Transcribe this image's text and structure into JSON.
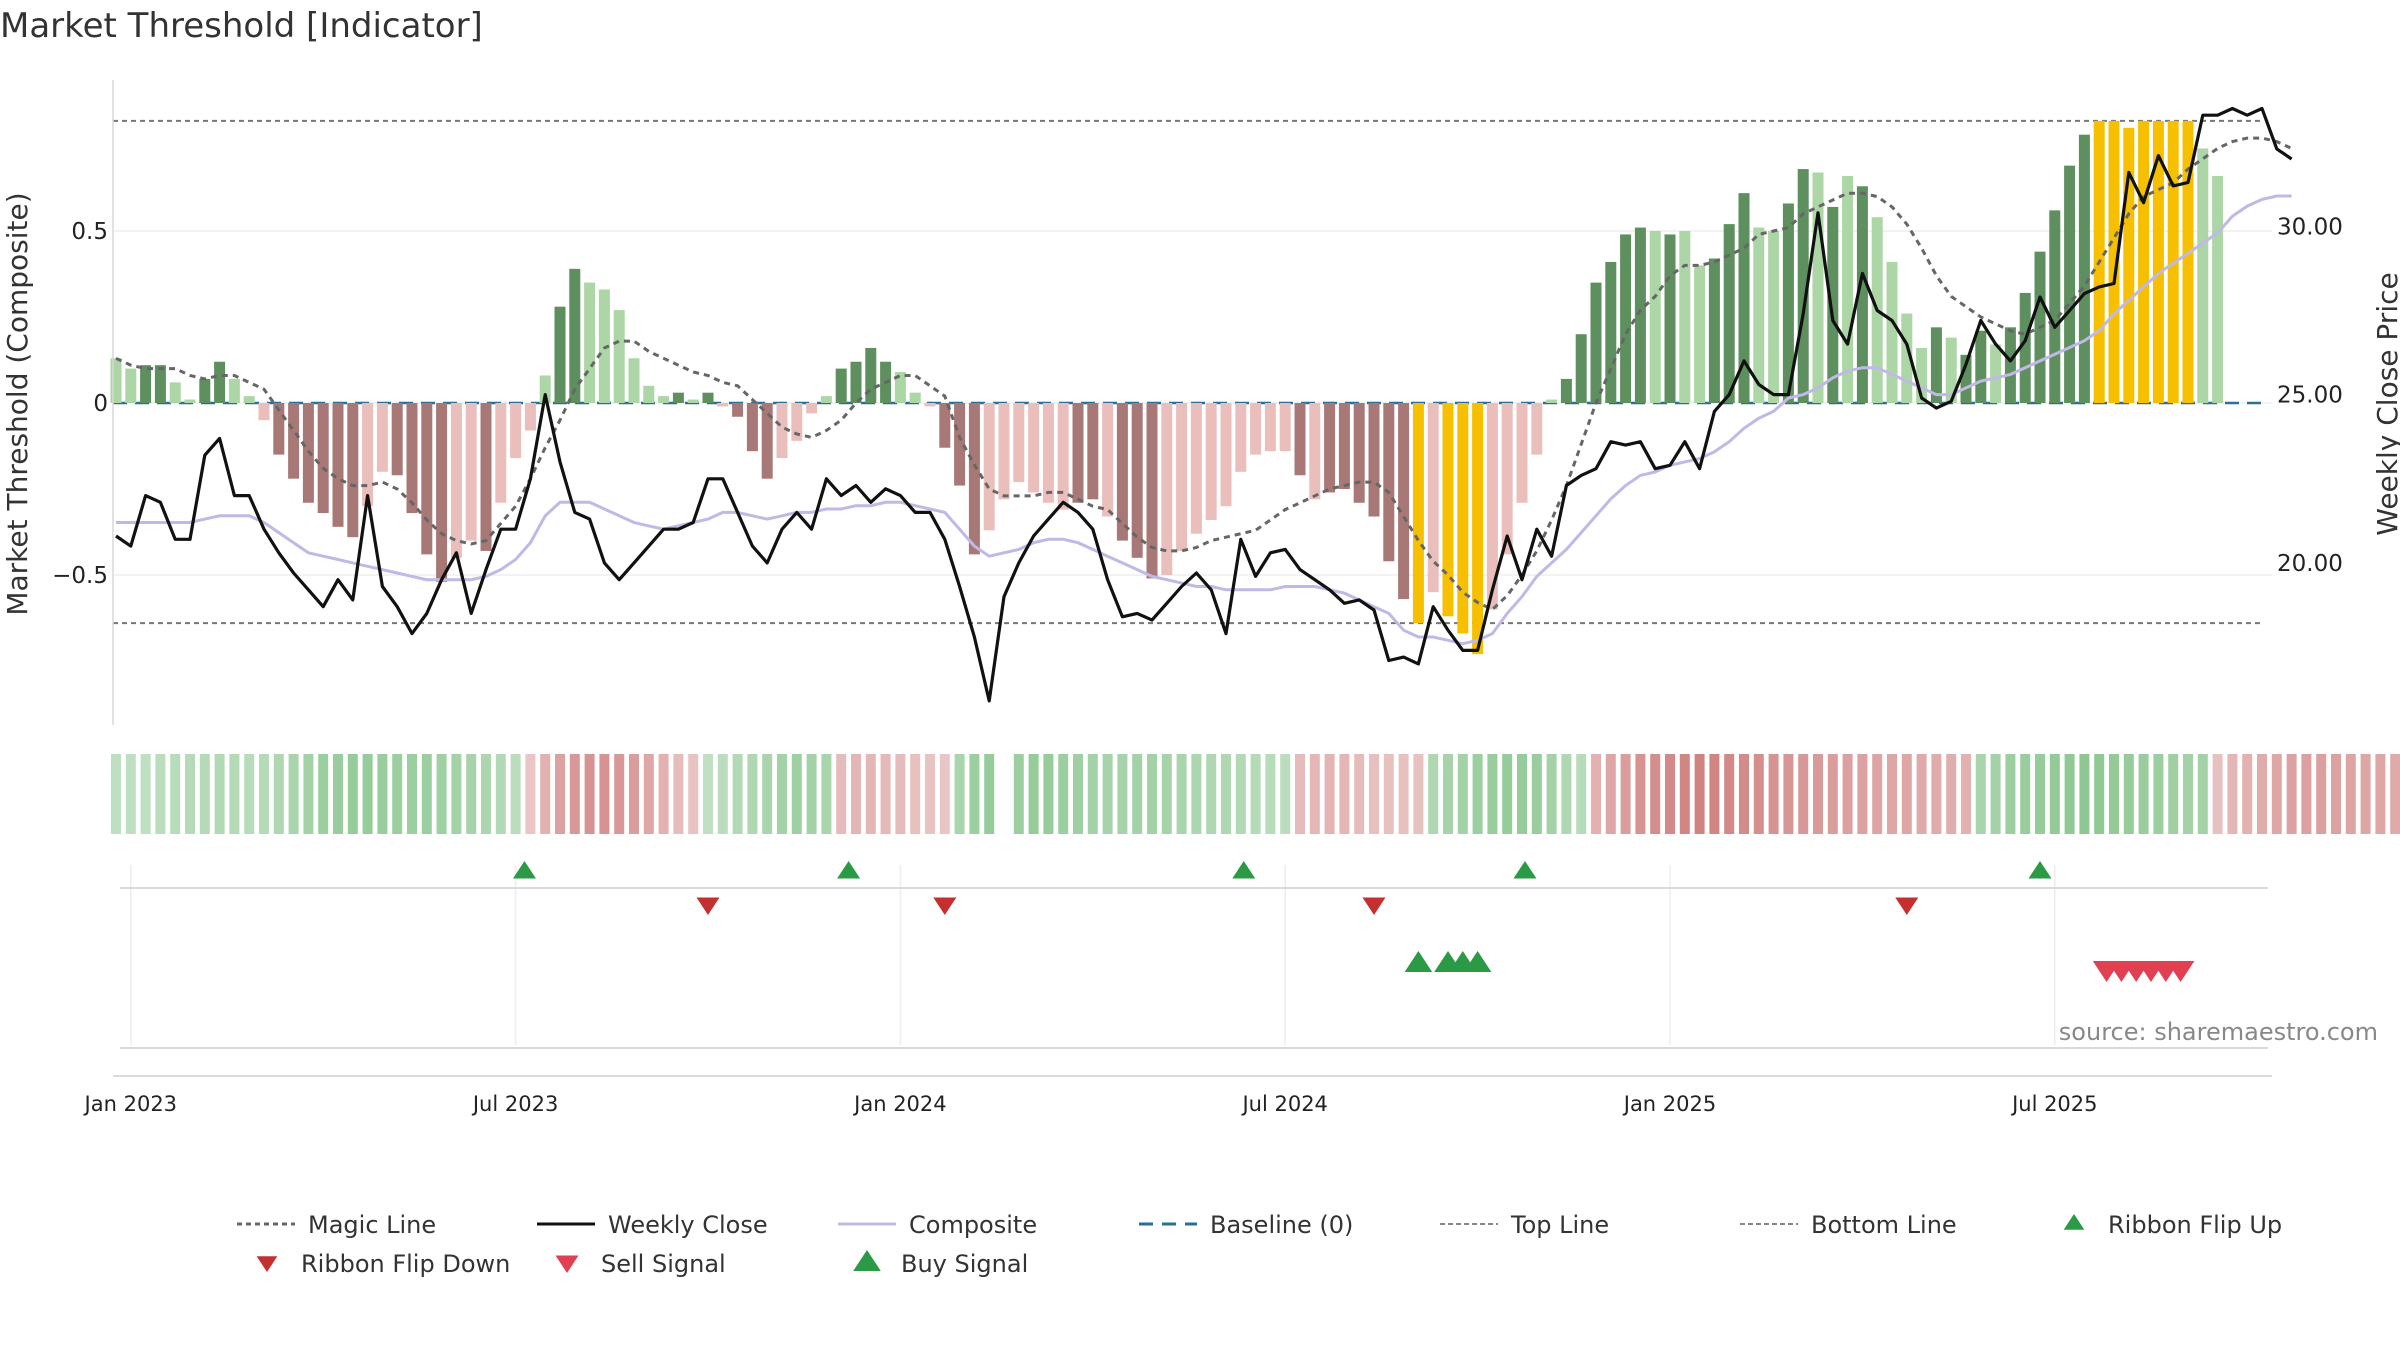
{
  "chart_data": {
    "type": "bar",
    "title": "Market Threshold [Indicator]",
    "ylabel_left": "Market Threshold (Composite)",
    "ylabel_right": "Weekly Close Price",
    "source": "source: sharemaestro.com",
    "ylim_left": [
      -0.93,
      0.93
    ],
    "ylim_right": [
      15.41,
      34.41
    ],
    "yticks_left": [
      {
        "v": 0.5,
        "label": "0.5"
      },
      {
        "v": 0,
        "label": "0"
      },
      {
        "v": -0.5,
        "label": "−0.5"
      }
    ],
    "yticks_right": [
      {
        "v": 30,
        "label": "30.00"
      },
      {
        "v": 25,
        "label": "25.00"
      },
      {
        "v": 20,
        "label": "20.00"
      }
    ],
    "xticks": [
      {
        "week": 1,
        "label": "Jan 2023"
      },
      {
        "week": 27,
        "label": "Jul 2023"
      },
      {
        "week": 53,
        "label": "Jan 2024"
      },
      {
        "week": 79,
        "label": "Jul 2024"
      },
      {
        "week": 105,
        "label": "Jan 2025"
      },
      {
        "week": 131,
        "label": "Jul 2025"
      }
    ],
    "top_line": 0.82,
    "bottom_line": -0.64,
    "colors": {
      "strong_up": "#5e8f5e",
      "weak_up": "#acd6a6",
      "strong_down": "#a77876",
      "weak_down": "#eabfbb",
      "extreme": "#f6c000",
      "weekly_close": "#111111",
      "composite": "#c0b8e6",
      "magic": "#666666",
      "baseline": "#2a6f97",
      "ribbon_flip_up": "#2a9a45",
      "ribbon_flip_down": "#c43030",
      "sell_signal": "#e04050",
      "buy_signal": "#2a9a45"
    },
    "bars": [
      {
        "v": 0.13,
        "c": "weak_up"
      },
      {
        "v": 0.1,
        "c": "weak_up"
      },
      {
        "v": 0.11,
        "c": "strong_up"
      },
      {
        "v": 0.11,
        "c": "strong_up"
      },
      {
        "v": 0.06,
        "c": "weak_up"
      },
      {
        "v": 0.01,
        "c": "weak_up"
      },
      {
        "v": 0.07,
        "c": "strong_up"
      },
      {
        "v": 0.12,
        "c": "strong_up"
      },
      {
        "v": 0.07,
        "c": "weak_up"
      },
      {
        "v": 0.02,
        "c": "weak_up"
      },
      {
        "v": -0.05,
        "c": "weak_down"
      },
      {
        "v": -0.15,
        "c": "strong_down"
      },
      {
        "v": -0.22,
        "c": "strong_down"
      },
      {
        "v": -0.29,
        "c": "strong_down"
      },
      {
        "v": -0.32,
        "c": "strong_down"
      },
      {
        "v": -0.36,
        "c": "strong_down"
      },
      {
        "v": -0.39,
        "c": "strong_down"
      },
      {
        "v": -0.3,
        "c": "weak_down"
      },
      {
        "v": -0.2,
        "c": "weak_down"
      },
      {
        "v": -0.21,
        "c": "strong_down"
      },
      {
        "v": -0.32,
        "c": "strong_down"
      },
      {
        "v": -0.44,
        "c": "strong_down"
      },
      {
        "v": -0.52,
        "c": "strong_down"
      },
      {
        "v": -0.45,
        "c": "weak_down"
      },
      {
        "v": -0.4,
        "c": "weak_down"
      },
      {
        "v": -0.43,
        "c": "strong_down"
      },
      {
        "v": -0.29,
        "c": "weak_down"
      },
      {
        "v": -0.16,
        "c": "weak_down"
      },
      {
        "v": -0.08,
        "c": "weak_down"
      },
      {
        "v": 0.08,
        "c": "weak_up"
      },
      {
        "v": 0.28,
        "c": "strong_up"
      },
      {
        "v": 0.39,
        "c": "strong_up"
      },
      {
        "v": 0.35,
        "c": "weak_up"
      },
      {
        "v": 0.33,
        "c": "weak_up"
      },
      {
        "v": 0.27,
        "c": "weak_up"
      },
      {
        "v": 0.13,
        "c": "weak_up"
      },
      {
        "v": 0.05,
        "c": "weak_up"
      },
      {
        "v": 0.02,
        "c": "weak_up"
      },
      {
        "v": 0.03,
        "c": "strong_up"
      },
      {
        "v": 0.01,
        "c": "weak_up"
      },
      {
        "v": 0.03,
        "c": "strong_up"
      },
      {
        "v": -0.01,
        "c": "weak_down"
      },
      {
        "v": -0.04,
        "c": "strong_down"
      },
      {
        "v": -0.14,
        "c": "strong_down"
      },
      {
        "v": -0.22,
        "c": "strong_down"
      },
      {
        "v": -0.16,
        "c": "weak_down"
      },
      {
        "v": -0.11,
        "c": "weak_down"
      },
      {
        "v": -0.03,
        "c": "weak_down"
      },
      {
        "v": 0.02,
        "c": "weak_up"
      },
      {
        "v": 0.1,
        "c": "strong_up"
      },
      {
        "v": 0.12,
        "c": "strong_up"
      },
      {
        "v": 0.16,
        "c": "strong_up"
      },
      {
        "v": 0.12,
        "c": "strong_up"
      },
      {
        "v": 0.09,
        "c": "weak_up"
      },
      {
        "v": 0.03,
        "c": "weak_up"
      },
      {
        "v": -0.01,
        "c": "weak_down"
      },
      {
        "v": -0.13,
        "c": "strong_down"
      },
      {
        "v": -0.24,
        "c": "strong_down"
      },
      {
        "v": -0.44,
        "c": "strong_down"
      },
      {
        "v": -0.37,
        "c": "weak_down"
      },
      {
        "v": -0.28,
        "c": "weak_down"
      },
      {
        "v": -0.23,
        "c": "weak_down"
      },
      {
        "v": -0.26,
        "c": "weak_down"
      },
      {
        "v": -0.29,
        "c": "weak_down"
      },
      {
        "v": -0.31,
        "c": "weak_down"
      },
      {
        "v": -0.29,
        "c": "strong_down"
      },
      {
        "v": -0.28,
        "c": "strong_down"
      },
      {
        "v": -0.33,
        "c": "weak_down"
      },
      {
        "v": -0.4,
        "c": "strong_down"
      },
      {
        "v": -0.45,
        "c": "strong_down"
      },
      {
        "v": -0.51,
        "c": "strong_down"
      },
      {
        "v": -0.5,
        "c": "weak_down"
      },
      {
        "v": -0.43,
        "c": "weak_down"
      },
      {
        "v": -0.38,
        "c": "weak_down"
      },
      {
        "v": -0.34,
        "c": "weak_down"
      },
      {
        "v": -0.3,
        "c": "weak_down"
      },
      {
        "v": -0.2,
        "c": "weak_down"
      },
      {
        "v": -0.15,
        "c": "weak_down"
      },
      {
        "v": -0.14,
        "c": "weak_down"
      },
      {
        "v": -0.14,
        "c": "weak_down"
      },
      {
        "v": -0.21,
        "c": "strong_down"
      },
      {
        "v": -0.28,
        "c": "weak_down"
      },
      {
        "v": -0.26,
        "c": "strong_down"
      },
      {
        "v": -0.25,
        "c": "strong_down"
      },
      {
        "v": -0.29,
        "c": "strong_down"
      },
      {
        "v": -0.33,
        "c": "strong_down"
      },
      {
        "v": -0.46,
        "c": "strong_down"
      },
      {
        "v": -0.57,
        "c": "strong_down"
      },
      {
        "v": -0.64,
        "c": "extreme"
      },
      {
        "v": -0.55,
        "c": "weak_down"
      },
      {
        "v": -0.62,
        "c": "extreme"
      },
      {
        "v": -0.67,
        "c": "extreme"
      },
      {
        "v": -0.73,
        "c": "extreme"
      },
      {
        "v": -0.6,
        "c": "weak_down"
      },
      {
        "v": -0.44,
        "c": "weak_down"
      },
      {
        "v": -0.29,
        "c": "weak_down"
      },
      {
        "v": -0.15,
        "c": "weak_down"
      },
      {
        "v": 0.01,
        "c": "weak_up"
      },
      {
        "v": 0.07,
        "c": "strong_up"
      },
      {
        "v": 0.2,
        "c": "strong_up"
      },
      {
        "v": 0.35,
        "c": "strong_up"
      },
      {
        "v": 0.41,
        "c": "strong_up"
      },
      {
        "v": 0.49,
        "c": "strong_up"
      },
      {
        "v": 0.51,
        "c": "strong_up"
      },
      {
        "v": 0.5,
        "c": "weak_up"
      },
      {
        "v": 0.49,
        "c": "strong_up"
      },
      {
        "v": 0.5,
        "c": "weak_up"
      },
      {
        "v": 0.4,
        "c": "weak_up"
      },
      {
        "v": 0.42,
        "c": "strong_up"
      },
      {
        "v": 0.52,
        "c": "strong_up"
      },
      {
        "v": 0.61,
        "c": "strong_up"
      },
      {
        "v": 0.51,
        "c": "weak_up"
      },
      {
        "v": 0.5,
        "c": "weak_up"
      },
      {
        "v": 0.58,
        "c": "strong_up"
      },
      {
        "v": 0.68,
        "c": "strong_up"
      },
      {
        "v": 0.67,
        "c": "weak_up"
      },
      {
        "v": 0.57,
        "c": "strong_up"
      },
      {
        "v": 0.66,
        "c": "weak_up"
      },
      {
        "v": 0.63,
        "c": "strong_up"
      },
      {
        "v": 0.54,
        "c": "weak_up"
      },
      {
        "v": 0.41,
        "c": "weak_up"
      },
      {
        "v": 0.26,
        "c": "weak_up"
      },
      {
        "v": 0.16,
        "c": "weak_up"
      },
      {
        "v": 0.22,
        "c": "strong_up"
      },
      {
        "v": 0.19,
        "c": "weak_up"
      },
      {
        "v": 0.14,
        "c": "strong_up"
      },
      {
        "v": 0.21,
        "c": "strong_up"
      },
      {
        "v": 0.17,
        "c": "weak_up"
      },
      {
        "v": 0.22,
        "c": "strong_up"
      },
      {
        "v": 0.32,
        "c": "strong_up"
      },
      {
        "v": 0.44,
        "c": "strong_up"
      },
      {
        "v": 0.56,
        "c": "strong_up"
      },
      {
        "v": 0.69,
        "c": "strong_up"
      },
      {
        "v": 0.78,
        "c": "strong_up"
      },
      {
        "v": 0.82,
        "c": "extreme"
      },
      {
        "v": 0.82,
        "c": "extreme"
      },
      {
        "v": 0.8,
        "c": "extreme"
      },
      {
        "v": 0.82,
        "c": "extreme"
      },
      {
        "v": 0.82,
        "c": "extreme"
      },
      {
        "v": 0.82,
        "c": "extreme"
      },
      {
        "v": 0.82,
        "c": "extreme"
      },
      {
        "v": 0.74,
        "c": "weak_up"
      },
      {
        "v": 0.66,
        "c": "weak_up"
      }
    ],
    "weekly_close": [
      20.8,
      20.5,
      22.0,
      21.8,
      20.7,
      20.7,
      23.2,
      23.7,
      22.0,
      22.0,
      21.0,
      20.3,
      19.7,
      19.2,
      18.7,
      19.5,
      18.9,
      22.0,
      19.3,
      18.7,
      17.9,
      18.5,
      19.5,
      20.3,
      18.5,
      19.8,
      21.0,
      21.0,
      22.5,
      25.0,
      23.0,
      21.5,
      21.3,
      20.0,
      19.5,
      20.0,
      20.5,
      21.0,
      21.0,
      21.2,
      22.5,
      22.5,
      21.5,
      20.5,
      20.0,
      21.0,
      21.5,
      21.0,
      22.5,
      22.0,
      22.3,
      21.8,
      22.2,
      22.0,
      21.5,
      21.5,
      20.7,
      19.3,
      17.8,
      15.9,
      19.0,
      20.0,
      20.8,
      21.3,
      21.8,
      21.5,
      21.0,
      19.5,
      18.4,
      18.5,
      18.3,
      18.8,
      19.3,
      19.7,
      19.2,
      17.9,
      20.7,
      19.6,
      20.3,
      20.4,
      19.8,
      19.5,
      19.2,
      18.8,
      18.9,
      18.6,
      17.1,
      17.2,
      17.0,
      18.7,
      18.0,
      17.4,
      17.4,
      19.2,
      20.8,
      19.5,
      21.0,
      20.2,
      22.3,
      22.6,
      22.8,
      23.6,
      23.5,
      23.6,
      22.8,
      22.9,
      23.6,
      22.8,
      24.5,
      25.0,
      26.0,
      25.3,
      25.0,
      25.0,
      27.4,
      30.4,
      27.2,
      26.5,
      28.6,
      27.5,
      27.2,
      26.5,
      24.9,
      24.6,
      24.8,
      25.9,
      27.2,
      26.5,
      26.0,
      26.6,
      27.9,
      27.0,
      27.5,
      28.0,
      28.2,
      28.3,
      31.6,
      30.7,
      32.1,
      31.2,
      31.3,
      33.3,
      33.3,
      33.5,
      33.3,
      33.5,
      32.3,
      32.0
    ],
    "composite_line": [
      21.2,
      21.2,
      21.2,
      21.2,
      21.2,
      21.2,
      21.3,
      21.4,
      21.4,
      21.4,
      21.2,
      20.9,
      20.6,
      20.3,
      20.2,
      20.1,
      20.0,
      19.9,
      19.8,
      19.7,
      19.6,
      19.5,
      19.5,
      19.5,
      19.5,
      19.6,
      19.8,
      20.1,
      20.6,
      21.4,
      21.8,
      21.8,
      21.8,
      21.6,
      21.4,
      21.2,
      21.1,
      21.0,
      21.1,
      21.2,
      21.3,
      21.5,
      21.5,
      21.4,
      21.3,
      21.4,
      21.5,
      21.5,
      21.6,
      21.6,
      21.7,
      21.7,
      21.8,
      21.8,
      21.7,
      21.6,
      21.5,
      21.0,
      20.5,
      20.2,
      20.3,
      20.4,
      20.6,
      20.7,
      20.7,
      20.6,
      20.4,
      20.2,
      20.0,
      19.8,
      19.6,
      19.5,
      19.4,
      19.3,
      19.3,
      19.2,
      19.2,
      19.2,
      19.2,
      19.3,
      19.3,
      19.3,
      19.2,
      19.1,
      18.9,
      18.7,
      18.5,
      18.0,
      17.8,
      17.8,
      17.7,
      17.6,
      17.7,
      17.9,
      18.5,
      19.0,
      19.6,
      20.0,
      20.4,
      20.9,
      21.4,
      21.9,
      22.3,
      22.6,
      22.7,
      22.9,
      23.0,
      23.1,
      23.3,
      23.6,
      24.0,
      24.3,
      24.5,
      24.9,
      25.0,
      25.2,
      25.5,
      25.7,
      25.8,
      25.8,
      25.6,
      25.4,
      25.2,
      25.0,
      25.0,
      25.2,
      25.4,
      25.5,
      25.6,
      25.8,
      26.0,
      26.2,
      26.4,
      26.6,
      26.9,
      27.4,
      27.8,
      28.2,
      28.6,
      28.9,
      29.2,
      29.5,
      29.8,
      30.3,
      30.6,
      30.8,
      30.9,
      30.9
    ],
    "magic_line": [
      0.13,
      0.11,
      0.1,
      0.1,
      0.1,
      0.08,
      0.07,
      0.08,
      0.08,
      0.06,
      0.04,
      -0.02,
      -0.08,
      -0.14,
      -0.19,
      -0.22,
      -0.24,
      -0.24,
      -0.23,
      -0.25,
      -0.29,
      -0.34,
      -0.38,
      -0.4,
      -0.41,
      -0.4,
      -0.35,
      -0.3,
      -0.22,
      -0.13,
      -0.05,
      0.04,
      0.1,
      0.16,
      0.18,
      0.18,
      0.15,
      0.13,
      0.11,
      0.09,
      0.08,
      0.06,
      0.05,
      0.01,
      -0.03,
      -0.07,
      -0.09,
      -0.1,
      -0.08,
      -0.05,
      0.0,
      0.04,
      0.06,
      0.08,
      0.08,
      0.05,
      0.02,
      -0.1,
      -0.18,
      -0.25,
      -0.27,
      -0.27,
      -0.27,
      -0.26,
      -0.26,
      -0.28,
      -0.3,
      -0.31,
      -0.35,
      -0.39,
      -0.42,
      -0.43,
      -0.43,
      -0.42,
      -0.4,
      -0.39,
      -0.38,
      -0.37,
      -0.34,
      -0.31,
      -0.29,
      -0.27,
      -0.25,
      -0.24,
      -0.23,
      -0.23,
      -0.26,
      -0.33,
      -0.4,
      -0.46,
      -0.5,
      -0.55,
      -0.58,
      -0.6,
      -0.56,
      -0.5,
      -0.43,
      -0.34,
      -0.24,
      -0.12,
      0.0,
      0.1,
      0.2,
      0.27,
      0.31,
      0.37,
      0.4,
      0.4,
      0.41,
      0.43,
      0.45,
      0.49,
      0.5,
      0.51,
      0.55,
      0.57,
      0.59,
      0.61,
      0.61,
      0.6,
      0.57,
      0.52,
      0.45,
      0.37,
      0.31,
      0.28,
      0.25,
      0.23,
      0.21,
      0.2,
      0.22,
      0.24,
      0.29,
      0.34,
      0.41,
      0.48,
      0.55,
      0.6,
      0.62,
      0.64,
      0.68,
      0.71,
      0.74,
      0.76,
      0.77,
      0.77,
      0.76,
      0.74
    ],
    "ribbon": [
      0.22,
      0.22,
      0.22,
      0.25,
      0.28,
      0.3,
      0.3,
      0.32,
      0.3,
      0.28,
      0.3,
      0.35,
      0.4,
      0.45,
      0.5,
      0.52,
      0.55,
      0.55,
      0.52,
      0.5,
      0.5,
      0.5,
      0.48,
      0.45,
      0.42,
      0.38,
      0.32,
      0.25,
      -0.25,
      -0.45,
      -0.6,
      -0.7,
      -0.75,
      -0.75,
      -0.7,
      -0.65,
      -0.55,
      -0.45,
      -0.35,
      -0.28,
      0.2,
      0.25,
      0.32,
      0.35,
      0.4,
      0.45,
      0.48,
      0.45,
      0.4,
      -0.35,
      -0.4,
      -0.4,
      -0.38,
      -0.35,
      -0.3,
      -0.28,
      -0.25,
      0.4,
      0.5,
      0.55,
      null,
      0.5,
      0.55,
      0.55,
      0.5,
      0.48,
      0.45,
      0.42,
      0.42,
      0.45,
      0.45,
      0.42,
      0.4,
      0.38,
      0.35,
      0.35,
      0.32,
      0.3,
      0.28,
      0.25,
      -0.35,
      -0.4,
      -0.42,
      -0.4,
      -0.35,
      -0.32,
      -0.3,
      -0.3,
      -0.3,
      0.35,
      0.42,
      0.45,
      0.5,
      0.52,
      0.55,
      0.55,
      0.52,
      0.45,
      0.35,
      0.28,
      -0.45,
      -0.55,
      -0.65,
      -0.75,
      -0.8,
      -0.85,
      -0.88,
      -0.9,
      -0.88,
      -0.85,
      -0.82,
      -0.78,
      -0.75,
      -0.72,
      -0.7,
      -0.68,
      -0.65,
      -0.62,
      -0.6,
      -0.58,
      -0.55,
      -0.55,
      -0.52,
      -0.5,
      -0.48,
      -0.45,
      0.4,
      0.45,
      0.5,
      0.52,
      0.55,
      0.58,
      0.6,
      0.62,
      0.6,
      0.58,
      0.55,
      0.52,
      0.5,
      0.48,
      0.45,
      0.45,
      -0.3,
      -0.4,
      -0.45,
      -0.5,
      -0.55,
      -0.6,
      -0.62,
      -0.62,
      -0.6,
      -0.58,
      -0.55,
      -0.55,
      -0.52,
      -0.52,
      -0.5,
      -0.5
    ],
    "ribbon_flip_up": [
      27.6,
      49.5,
      76.2,
      95.2,
      130.0
    ],
    "ribbon_flip_down": [
      40.0,
      56.0,
      85.0,
      121.0
    ],
    "buy_signal": [
      88.0,
      90.0,
      91.0,
      92.0
    ],
    "sell_signal": [
      134.5,
      135.5,
      136.5,
      137.5,
      138.5,
      139.5
    ],
    "legend": [
      {
        "key": "magic",
        "label": "Magic Line"
      },
      {
        "key": "weekly_close",
        "label": "Weekly Close"
      },
      {
        "key": "composite",
        "label": "Composite"
      },
      {
        "key": "baseline",
        "label": "Baseline (0)"
      },
      {
        "key": "top",
        "label": "Top Line"
      },
      {
        "key": "bottom",
        "label": "Bottom Line"
      },
      {
        "key": "ribbon_flip_up",
        "label": "Ribbon Flip Up"
      },
      {
        "key": "ribbon_flip_down",
        "label": "Ribbon Flip Down"
      },
      {
        "key": "sell_signal",
        "label": "Sell Signal"
      },
      {
        "key": "buy_signal",
        "label": "Buy Signal"
      }
    ]
  }
}
